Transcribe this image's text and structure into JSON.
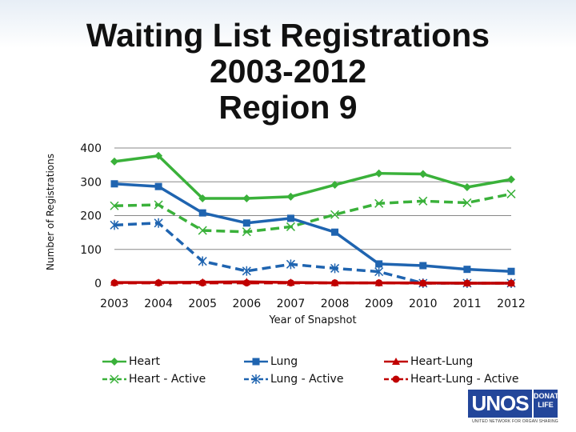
{
  "colors": {
    "heart": "#3ab13a",
    "lung": "#1f64b0",
    "heart_lung": "#c00000",
    "grid": "#888888",
    "logo": "#23469a"
  },
  "chart_data": {
    "type": "line",
    "title_lines": [
      "Waiting List Registrations",
      "2003-2012",
      "Region 9"
    ],
    "xlabel": "Year of Snapshot",
    "ylabel": "Number of Registrations",
    "categories": [
      "2003",
      "2004",
      "2005",
      "2006",
      "2007",
      "2008",
      "2009",
      "2010",
      "2011",
      "2012"
    ],
    "yticks": [
      "0",
      "100",
      "200",
      "300",
      "400"
    ],
    "ylim": [
      0,
      400
    ],
    "grid": true,
    "legend_position": "bottom",
    "series": [
      {
        "name": "Heart",
        "style": "solid",
        "color": "heart",
        "marker": "diamond",
        "values": [
          360,
          377,
          251,
          251,
          256,
          291,
          325,
          323,
          284,
          307
        ]
      },
      {
        "name": "Heart - Active",
        "style": "dashed",
        "color": "heart",
        "marker": "x",
        "values": [
          229,
          232,
          156,
          152,
          167,
          203,
          236,
          243,
          238,
          264
        ]
      },
      {
        "name": "Lung",
        "style": "solid",
        "color": "lung",
        "marker": "square",
        "values": [
          294,
          286,
          208,
          178,
          192,
          151,
          57,
          52,
          41,
          35
        ]
      },
      {
        "name": "Lung - Active",
        "style": "dashed",
        "color": "lung",
        "marker": "asterisk",
        "values": [
          172,
          178,
          65,
          36,
          56,
          44,
          34,
          0,
          0,
          0
        ]
      },
      {
        "name": "Heart-Lung",
        "style": "solid",
        "color": "heart_lung",
        "marker": "triangle",
        "values": [
          2,
          2,
          3,
          4,
          2,
          1,
          1,
          1,
          0,
          0
        ]
      },
      {
        "name": "Heart-Lung - Active",
        "style": "dashed",
        "color": "heart_lung",
        "marker": "circle",
        "values": [
          1,
          1,
          1,
          1,
          1,
          1,
          1,
          0,
          0,
          0
        ]
      }
    ]
  },
  "logo": {
    "main": "UNOS",
    "side_top": "DONATE",
    "side_bottom": "LIFE",
    "tagline": "UNITED NETWORK FOR ORGAN SHARING"
  }
}
